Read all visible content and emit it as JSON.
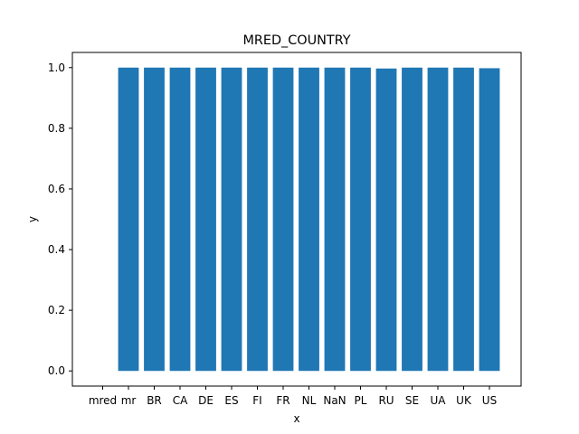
{
  "chart_data": {
    "type": "bar",
    "title": "MRED_COUNTRY",
    "xlabel": "x",
    "ylabel": "y",
    "categories": [
      "mred",
      "mr",
      "BR",
      "CA",
      "DE",
      "ES",
      "FI",
      "FR",
      "NL",
      "NaN",
      "PL",
      "RU",
      "SE",
      "UA",
      "UK",
      "US"
    ],
    "values": [
      0,
      1.0,
      1.0,
      1.0,
      1.0,
      1.0,
      1.0,
      1.0,
      1.0,
      1.0,
      1.0,
      0.997,
      1.0,
      1.0,
      1.0,
      0.998
    ],
    "ylim": [
      -0.05,
      1.05
    ],
    "yticks": [
      "0.0",
      "0.2",
      "0.4",
      "0.6",
      "0.8",
      "1.0"
    ],
    "grid": false,
    "bar_color": "#1f77b4"
  }
}
